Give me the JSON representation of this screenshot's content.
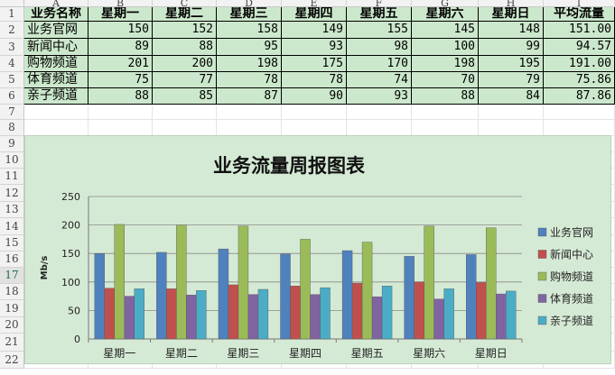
{
  "sheet": {
    "column_headers": [
      "A",
      "B",
      "C",
      "D",
      "E",
      "F",
      "G",
      "H",
      "I"
    ],
    "row_numbers": [
      "1",
      "2",
      "3",
      "4",
      "5",
      "6",
      "7",
      "8",
      "9",
      "10",
      "11",
      "12",
      "13",
      "14",
      "15",
      "16",
      "17",
      "18",
      "19",
      "20",
      "21",
      "22"
    ],
    "selected_row": "17",
    "table": {
      "header": [
        "业务名称",
        "星期一",
        "星期二",
        "星期三",
        "星期四",
        "星期五",
        "星期六",
        "星期日",
        "平均流量"
      ],
      "rows": [
        [
          "业务官网",
          "150",
          "152",
          "158",
          "149",
          "155",
          "145",
          "148",
          "151.00"
        ],
        [
          "新闻中心",
          "89",
          "88",
          "95",
          "93",
          "98",
          "100",
          "99",
          "94.57"
        ],
        [
          "购物频道",
          "201",
          "200",
          "198",
          "175",
          "170",
          "198",
          "195",
          "191.00"
        ],
        [
          "体育频道",
          "75",
          "77",
          "78",
          "78",
          "74",
          "70",
          "79",
          "75.86"
        ],
        [
          "亲子频道",
          "88",
          "85",
          "87",
          "90",
          "93",
          "88",
          "84",
          "87.86"
        ]
      ]
    }
  },
  "chart_data": {
    "type": "bar",
    "title": "业务流量周报图表",
    "ylabel": "Mb/s",
    "xlabel": "",
    "categories": [
      "星期一",
      "星期二",
      "星期三",
      "星期四",
      "星期五",
      "星期六",
      "星期日"
    ],
    "ylim": [
      0,
      250
    ],
    "yticks": [
      "0",
      "50",
      "100",
      "150",
      "200",
      "250"
    ],
    "grid": true,
    "legend_position": "right",
    "series": [
      {
        "name": "业务官网",
        "color": "#4f81bd",
        "values": [
          150,
          152,
          158,
          149,
          155,
          145,
          148
        ]
      },
      {
        "name": "新闻中心",
        "color": "#c0504d",
        "values": [
          89,
          88,
          95,
          93,
          98,
          100,
          99
        ]
      },
      {
        "name": "购物频道",
        "color": "#9bbb59",
        "values": [
          201,
          200,
          198,
          175,
          170,
          198,
          195
        ]
      },
      {
        "name": "体育频道",
        "color": "#8064a2",
        "values": [
          75,
          77,
          78,
          78,
          74,
          70,
          79
        ]
      },
      {
        "name": "亲子频道",
        "color": "#4bacc6",
        "values": [
          88,
          85,
          87,
          90,
          93,
          88,
          84
        ]
      }
    ]
  }
}
